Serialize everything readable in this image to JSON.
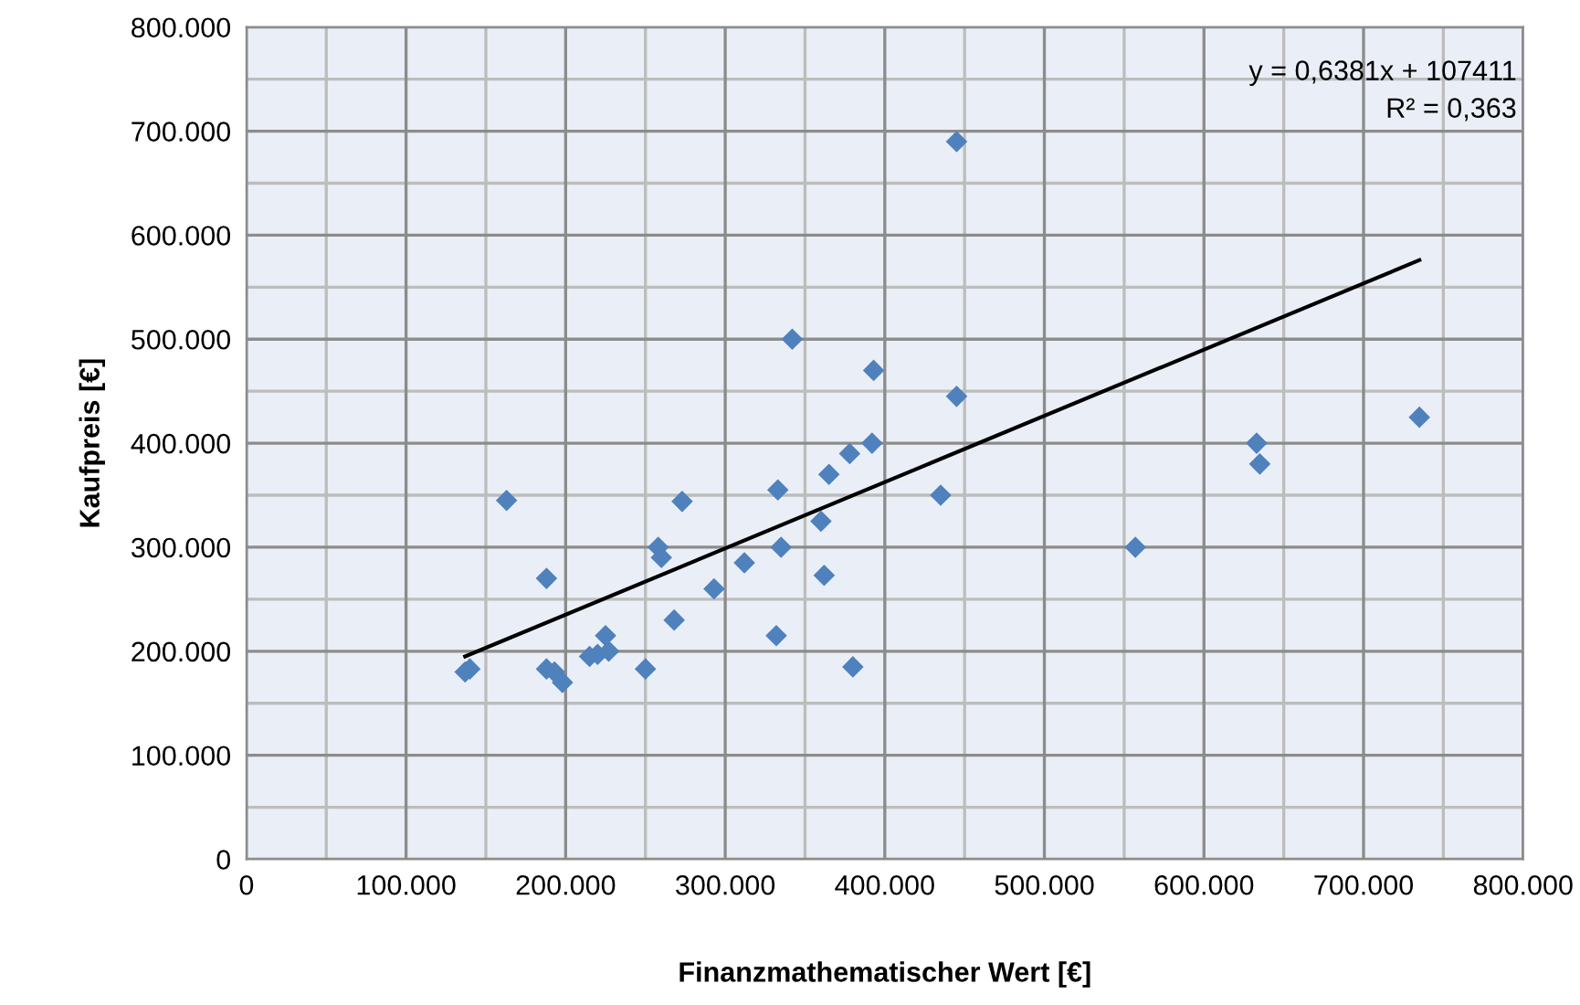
{
  "chart_data": {
    "type": "scatter",
    "xlabel": "Finanzmathematischer Wert [€]",
    "ylabel": "Kaufpreis [€]",
    "series": [
      {
        "color": "#4f81bd",
        "marker": "diamond",
        "x": [
          137000,
          140000,
          163000,
          188000,
          188000,
          193000,
          198000,
          215000,
          220000,
          225000,
          227000,
          250000,
          258000,
          260000,
          268000,
          273000,
          293000,
          312000,
          332000,
          333000,
          335000,
          342000,
          360000,
          362000,
          365000,
          378000,
          380000,
          392000,
          393000,
          435000,
          445000,
          445000,
          557000,
          633000,
          635000,
          735000
        ],
        "values": [
          180000,
          183000,
          345000,
          270000,
          183000,
          180000,
          170000,
          195000,
          197000,
          215000,
          200000,
          183000,
          300000,
          290000,
          230000,
          344000,
          260000,
          285000,
          215000,
          355000,
          300000,
          500000,
          325000,
          273000,
          370000,
          390000,
          185000,
          400000,
          470000,
          350000,
          445000,
          690000,
          300000,
          400000,
          380000,
          425000
        ]
      },
      {
        "type": "line",
        "color": "#000000",
        "marker": "none",
        "line_style": "solid",
        "x": [
          137000,
          735000
        ],
        "values": [
          195000,
          576000
        ]
      }
    ],
    "annotations": [
      "y = 0,6381x + 107411",
      "R² = 0,363"
    ],
    "xlim": [
      0,
      800000
    ],
    "ylim": [
      0,
      800000
    ],
    "xticks": [
      {
        "value": 0,
        "label": "0"
      },
      {
        "value": 100000,
        "label": "100.000"
      },
      {
        "value": 200000,
        "label": "200.000"
      },
      {
        "value": 300000,
        "label": "300.000"
      },
      {
        "value": 400000,
        "label": "400.000"
      },
      {
        "value": 500000,
        "label": "500.000"
      },
      {
        "value": 600000,
        "label": "600.000"
      },
      {
        "value": 700000,
        "label": "700.000"
      },
      {
        "value": 800000,
        "label": "800.000"
      }
    ],
    "yticks": [
      {
        "value": 0,
        "label": "0"
      },
      {
        "value": 100000,
        "label": "100.000"
      },
      {
        "value": 200000,
        "label": "200.000"
      },
      {
        "value": 300000,
        "label": "300.000"
      },
      {
        "value": 400000,
        "label": "400.000"
      },
      {
        "value": 500000,
        "label": "500.000"
      },
      {
        "value": 600000,
        "label": "600.000"
      },
      {
        "value": 700000,
        "label": "700.000"
      },
      {
        "value": 800000,
        "label": "800.000"
      }
    ],
    "grid": true,
    "legend": false
  }
}
